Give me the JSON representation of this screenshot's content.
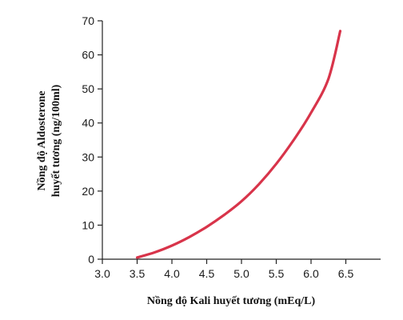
{
  "chart_data": {
    "type": "line",
    "xlabel": "Nồng độ Kali huyết tương (mEq/L)",
    "ylabel_lines": [
      "Nồng độ Aldosterone",
      "huyết tương (ng/100ml)"
    ],
    "xlim": [
      3.0,
      7.0
    ],
    "ylim": [
      0,
      70
    ],
    "x_ticks": [
      "3.0",
      "3.5",
      "4.0",
      "4.5",
      "5.0",
      "5.5",
      "6.0",
      "6.5"
    ],
    "y_ticks": [
      "0",
      "10",
      "20",
      "30",
      "40",
      "50",
      "60",
      "70"
    ],
    "grid": false,
    "series": [
      {
        "color": "#d8344a",
        "x": [
          3.5,
          3.75,
          4.0,
          4.25,
          4.5,
          4.75,
          5.0,
          5.25,
          5.5,
          5.75,
          6.0,
          6.25,
          6.42
        ],
        "y": [
          0.5,
          2,
          4,
          6.5,
          9.5,
          13,
          17,
          22,
          28,
          35,
          43,
          53,
          67
        ]
      }
    ]
  }
}
